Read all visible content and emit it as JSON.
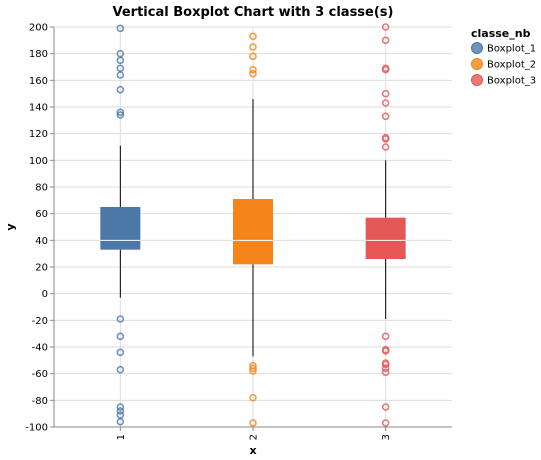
{
  "chart_data": {
    "type": "boxplot",
    "title": "Vertical Boxplot Chart with 3 classe(s)",
    "xlabel": "x",
    "ylabel": "y",
    "ylim": [
      -100,
      200
    ],
    "y_ticks": [
      -100,
      -80,
      -60,
      -40,
      -20,
      0,
      20,
      40,
      60,
      80,
      100,
      120,
      140,
      160,
      180,
      200
    ],
    "categories": [
      "1",
      "2",
      "3"
    ],
    "grid": true,
    "legend": {
      "title": "classe_nb",
      "position": "top-right"
    },
    "series": [
      {
        "name": "Boxplot_1",
        "category": "1",
        "color": "#4c78a8",
        "whisker_low": -3,
        "q1": 33,
        "median": 40,
        "q3": 65,
        "whisker_high": 111,
        "outliers": [
          199,
          180,
          175,
          169,
          164,
          153,
          136,
          134,
          -19,
          -32,
          -44,
          -57,
          -85,
          -88,
          -91,
          -96
        ]
      },
      {
        "name": "Boxplot_2",
        "category": "2",
        "color": "#f58518",
        "whisker_low": -47,
        "q1": 22,
        "median": 40,
        "q3": 71,
        "whisker_high": 146,
        "outliers": [
          193,
          185,
          178,
          168,
          165,
          -54,
          -56,
          -58,
          -78,
          -97
        ]
      },
      {
        "name": "Boxplot_3",
        "category": "3",
        "color": "#e45756",
        "whisker_low": -19,
        "q1": 26,
        "median": 40,
        "q3": 57,
        "whisker_high": 100,
        "outliers": [
          200,
          190,
          169,
          168,
          150,
          143,
          133,
          117,
          116,
          110,
          -32,
          -42,
          -43,
          -52,
          -53,
          -56,
          -59,
          -85,
          -97
        ]
      }
    ]
  }
}
